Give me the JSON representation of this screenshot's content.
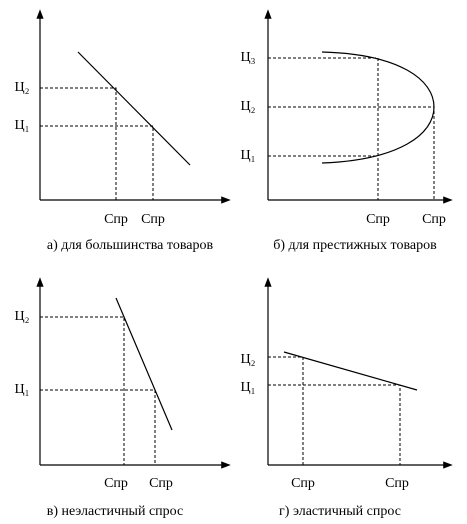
{
  "panels": [
    {
      "caption": "а) для большинства товаров",
      "y_labels": [
        "Ц₂",
        "Ц₁"
      ],
      "x_labels": [
        "Спр",
        "Спр"
      ]
    },
    {
      "caption": "б) для престижных товаров",
      "y_labels": [
        "Ц₃",
        "Ц₂",
        "Ц₁"
      ],
      "x_labels": [
        "Спр",
        "Спр"
      ]
    },
    {
      "caption": "в) неэластичный спрос",
      "y_labels": [
        "Ц₂",
        "Ц₁"
      ],
      "x_labels": [
        "Спр",
        "Спр"
      ]
    },
    {
      "caption": "г) эластичный спрос",
      "y_labels": [
        "Ц₂",
        "Ц₁"
      ],
      "x_labels": [
        "Спр",
        "Спр"
      ]
    }
  ]
}
